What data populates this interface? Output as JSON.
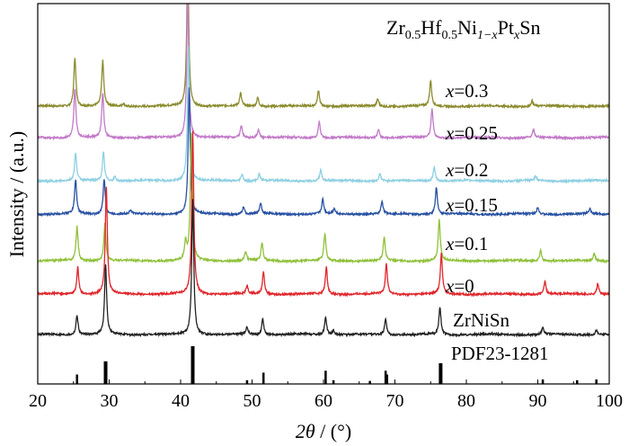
{
  "chart_data": {
    "type": "line",
    "title": "",
    "composition_label": {
      "base": "Zr",
      "s1": "0.5",
      "mid1": "Hf",
      "s2": "0.5",
      "mid2": "Ni",
      "s3": "1−x",
      "mid3": "Pt",
      "s4": "x",
      "end": "Sn"
    },
    "xlabel": {
      "var": "2θ",
      "unit": " / (°)"
    },
    "ylabel": "Intensity / (a.u.)",
    "xlim": [
      20,
      100
    ],
    "xticks": [
      20,
      30,
      40,
      50,
      60,
      70,
      80,
      90,
      100
    ],
    "grid": false,
    "series": [
      {
        "name": "x=0.3",
        "label": {
          "var": "x",
          "rest": "=0.3"
        },
        "color": "#8b8b2e",
        "peaks": [
          [
            25.2,
            55
          ],
          [
            29.1,
            50
          ],
          [
            32.0,
            3
          ],
          [
            41.0,
            160
          ],
          [
            48.4,
            14
          ],
          [
            50.8,
            10
          ],
          [
            59.3,
            18
          ],
          [
            67.6,
            8
          ],
          [
            75.0,
            28
          ],
          [
            89.2,
            6
          ]
        ]
      },
      {
        "name": "x=0.25",
        "label": {
          "var": "x",
          "rest": "=0.25"
        },
        "color": "#c27ac8",
        "peaks": [
          [
            25.2,
            55
          ],
          [
            29.1,
            50
          ],
          [
            41.0,
            160
          ],
          [
            48.5,
            14
          ],
          [
            50.9,
            10
          ],
          [
            59.4,
            18
          ],
          [
            67.7,
            10
          ],
          [
            75.2,
            32
          ],
          [
            89.4,
            8
          ]
        ]
      },
      {
        "name": "x=0.2",
        "label": {
          "var": "x",
          "rest": "=0.2"
        },
        "color": "#8ed0e2",
        "peaks": [
          [
            25.3,
            30
          ],
          [
            29.2,
            32
          ],
          [
            30.8,
            5
          ],
          [
            41.1,
            150
          ],
          [
            48.6,
            8
          ],
          [
            51.0,
            7
          ],
          [
            59.6,
            12
          ],
          [
            67.9,
            8
          ],
          [
            75.5,
            16
          ],
          [
            89.7,
            5
          ]
        ]
      },
      {
        "name": "x=0.15",
        "label": {
          "var": "x",
          "rest": "=0.15"
        },
        "color": "#2851a3",
        "peaks": [
          [
            25.3,
            38
          ],
          [
            29.3,
            40
          ],
          [
            33.0,
            4
          ],
          [
            41.2,
            140
          ],
          [
            48.8,
            8
          ],
          [
            51.2,
            12
          ],
          [
            59.9,
            16
          ],
          [
            61.5,
            6
          ],
          [
            68.2,
            14
          ],
          [
            75.8,
            30
          ],
          [
            90.0,
            8
          ],
          [
            97.3,
            5
          ]
        ]
      },
      {
        "name": "x=0.1",
        "label": {
          "var": "x",
          "rest": "=0.1"
        },
        "color": "#8fc13a",
        "peaks": [
          [
            25.5,
            38
          ],
          [
            29.4,
            42
          ],
          [
            40.7,
            20
          ],
          [
            41.5,
            140
          ],
          [
            49.1,
            10
          ],
          [
            51.4,
            20
          ],
          [
            60.2,
            30
          ],
          [
            68.5,
            26
          ],
          [
            76.2,
            45
          ],
          [
            90.4,
            12
          ],
          [
            97.9,
            8
          ]
        ]
      },
      {
        "name": "x=0",
        "label": {
          "var": "x",
          "rest": "=0"
        },
        "color": "#e0262b",
        "peaks": [
          [
            25.6,
            30
          ],
          [
            29.6,
            120
          ],
          [
            41.7,
            180
          ],
          [
            49.3,
            9
          ],
          [
            51.6,
            25
          ],
          [
            60.4,
            30
          ],
          [
            68.8,
            34
          ],
          [
            76.5,
            45
          ],
          [
            91.0,
            14
          ],
          [
            98.4,
            12
          ]
        ]
      },
      {
        "name": "ZrNiSn",
        "label": {
          "var": "",
          "rest": "ZrNiSn"
        },
        "color": "#222222",
        "peaks": [
          [
            25.5,
            22
          ],
          [
            29.5,
            78
          ],
          [
            41.7,
            150
          ],
          [
            49.3,
            8
          ],
          [
            51.5,
            18
          ],
          [
            60.3,
            20
          ],
          [
            61.4,
            5
          ],
          [
            68.7,
            18
          ],
          [
            76.3,
            30
          ],
          [
            90.7,
            8
          ],
          [
            98.2,
            5
          ]
        ]
      }
    ],
    "reference": {
      "name": "PDF23-1281",
      "color": "#000000",
      "lines": [
        [
          25.5,
          0.25
        ],
        [
          29.5,
          0.6
        ],
        [
          41.7,
          1.0
        ],
        [
          49.3,
          0.1
        ],
        [
          51.6,
          0.3
        ],
        [
          60.3,
          0.35
        ],
        [
          61.4,
          0.1
        ],
        [
          66.5,
          0.08
        ],
        [
          68.7,
          0.35
        ],
        [
          68.9,
          0.25
        ],
        [
          76.4,
          0.55
        ],
        [
          90.7,
          0.12
        ],
        [
          95.5,
          0.1
        ],
        [
          98.2,
          0.12
        ]
      ]
    }
  }
}
